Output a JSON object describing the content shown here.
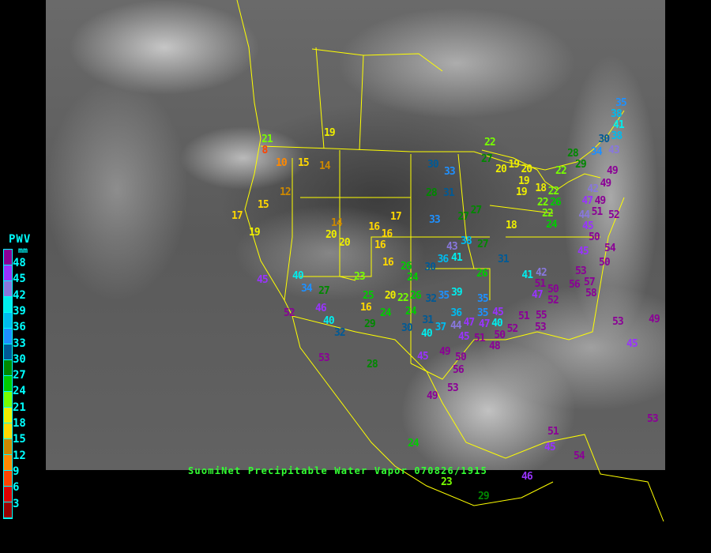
{
  "title": "SuomiNet Precipitable Water Vapor 070826/1915",
  "legend": {
    "title": "PWV",
    "unit": "mm",
    "ticks": [
      "48",
      "45",
      "42",
      "39",
      "36",
      "33",
      "30",
      "27",
      "24",
      "21",
      "18",
      "15",
      "12",
      "9",
      "6",
      "3"
    ],
    "colors": [
      "#8b0096",
      "#9933ff",
      "#8877dd",
      "#00eeee",
      "#00bbee",
      "#1e90ff",
      "#005a96",
      "#008800",
      "#00cc00",
      "#77ff00",
      "#eeee00",
      "#ffd700",
      "#cc8800",
      "#ff8800",
      "#ff4400",
      "#dd0000",
      "#990000"
    ]
  },
  "stations": [
    21,
    8,
    10,
    15,
    14,
    19,
    12,
    17,
    15,
    19,
    14,
    20,
    20,
    16,
    16,
    16,
    16,
    17,
    45,
    40,
    34,
    27,
    46,
    40,
    32,
    52,
    23,
    25,
    16,
    24,
    29,
    20,
    22,
    26,
    24,
    26,
    24,
    28,
    53,
    30,
    33,
    28,
    31,
    33,
    27,
    27,
    18,
    43,
    38,
    27,
    36,
    41,
    30,
    26,
    31,
    32,
    35,
    39,
    35,
    36,
    35,
    45,
    31,
    30,
    40,
    37,
    44,
    47,
    45,
    47,
    40,
    51,
    48,
    49,
    50,
    56,
    45,
    53,
    49,
    24,
    41,
    42,
    51,
    50,
    52,
    47,
    51,
    55,
    53,
    52,
    50,
    53,
    56,
    57,
    58,
    50,
    54,
    45,
    50,
    53,
    49,
    45,
    53,
    51,
    45,
    54,
    46,
    29,
    23,
    22,
    27,
    20,
    19,
    20,
    19,
    19,
    18,
    22,
    22,
    26,
    22,
    24,
    28,
    22,
    29,
    35,
    38,
    41,
    38,
    30,
    34,
    43,
    49,
    49,
    42,
    47,
    49,
    51,
    52,
    44,
    45
  ]
}
